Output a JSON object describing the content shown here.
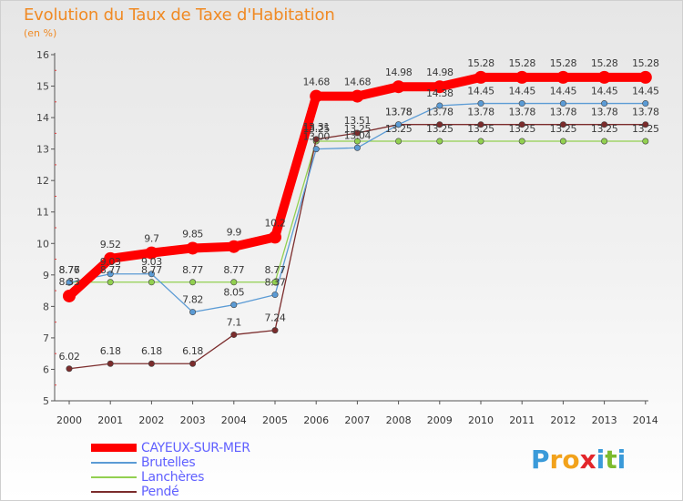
{
  "title": "Evolution du Taux de Taxe d'Habitation",
  "unit_label": "(en %)",
  "logo": {
    "letters": [
      "P",
      "r",
      "o",
      "x",
      "i",
      "t",
      "i"
    ],
    "colors": [
      "#3a9ad9",
      "#f2a21b",
      "#f2a21b",
      "#e3262b",
      "#3a9ad9",
      "#7dbb2e",
      "#3a9ad9"
    ]
  },
  "chart_data": {
    "type": "line",
    "title": "Evolution du Taux de Taxe d'Habitation",
    "ylabel": "(en %)",
    "xlabel": "",
    "ylim": [
      5,
      16
    ],
    "yticks": [
      "5",
      "6",
      "7",
      "8",
      "9",
      "10",
      "11",
      "12",
      "13",
      "14",
      "15",
      "16"
    ],
    "x": [
      "2000",
      "2001",
      "2002",
      "2003",
      "2004",
      "2005",
      "2006",
      "2007",
      "2008",
      "2009",
      "2010",
      "2011",
      "2012",
      "2013",
      "2014"
    ],
    "grid": false,
    "legend": "bottom-left",
    "series": [
      {
        "name": "CAYEUX-SUR-MER",
        "color": "#ff0000",
        "values": [
          8.33,
          9.52,
          9.7,
          9.85,
          9.9,
          10.2,
          14.68,
          14.68,
          14.98,
          14.98,
          15.28,
          15.28,
          15.28,
          15.28,
          15.28
        ],
        "labels": [
          "8.33",
          "9.52",
          "9.7",
          "9.85",
          "9.9",
          "10.2",
          "14.68",
          "14.68",
          "14.98",
          "14.98",
          "15.28",
          "15.28",
          "15.28",
          "15.28",
          "15.28"
        ]
      },
      {
        "name": "Brutelles",
        "color": "#5b9bd5",
        "values": [
          8.76,
          9.03,
          9.03,
          7.82,
          8.05,
          8.37,
          13.0,
          13.04,
          13.78,
          14.38,
          14.45,
          14.45,
          14.45,
          14.45,
          14.45
        ],
        "labels": [
          "8.76",
          "9.03",
          "9.03",
          "7.82",
          "8.05",
          "8.37",
          "13.00",
          "13.04",
          "13.78",
          "14.38",
          "14.45",
          "14.45",
          "14.45",
          "14.45",
          "14.45"
        ]
      },
      {
        "name": "Lanchères",
        "color": "#92d050",
        "values": [
          8.77,
          8.77,
          8.77,
          8.77,
          8.77,
          8.77,
          13.25,
          13.25,
          13.25,
          13.25,
          13.25,
          13.25,
          13.25,
          13.25,
          13.25
        ],
        "labels": [
          "8.77",
          "8.77",
          "8.77",
          "8.77",
          "8.77",
          "8.77",
          "13.25",
          "13.25",
          "13.25",
          "13.25",
          "13.25",
          "13.25",
          "13.25",
          "13.25",
          "13.25"
        ]
      },
      {
        "name": "Pendé",
        "color": "#7b2c2c",
        "values": [
          6.02,
          6.18,
          6.18,
          6.18,
          7.1,
          7.24,
          13.31,
          13.51,
          13.78,
          13.78,
          13.78,
          13.78,
          13.78,
          13.78,
          13.78
        ],
        "labels": [
          "6.02",
          "6.18",
          "6.18",
          "6.18",
          "7.1",
          "7.24",
          "13.31",
          "13.51",
          "13.78",
          "13.78",
          "13.78",
          "13.78",
          "13.78",
          "13.78",
          "13.78"
        ]
      }
    ]
  }
}
